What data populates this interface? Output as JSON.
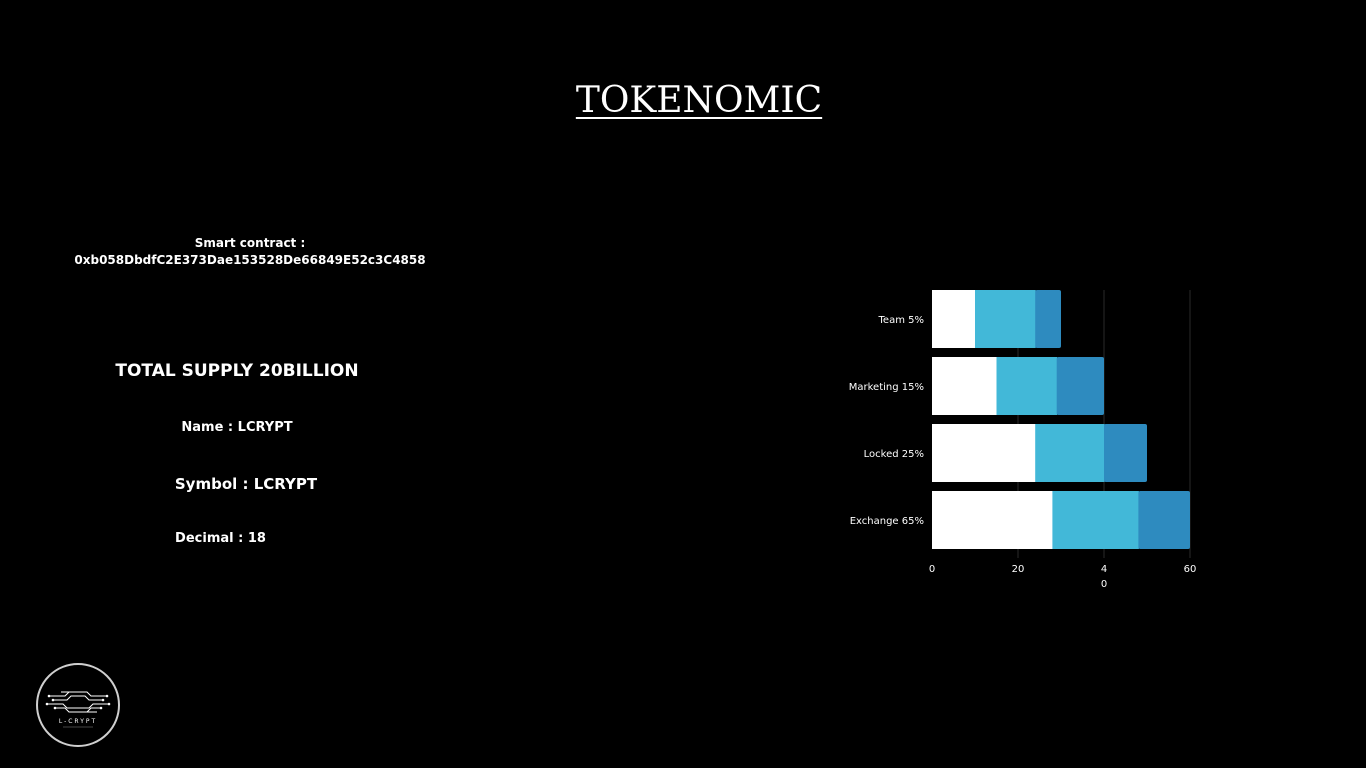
{
  "page": {
    "title": "TOKENOMIC",
    "contract_label": "Smart contract :",
    "contract_address": "0xb058DbdfC2E373Dae153528De66849E52c3C4858",
    "total_supply": "TOTAL SUPPLY 20BILLION",
    "name": "Name : LCRYPT",
    "symbol": "Symbol : LCRYPT",
    "decimal": "Decimal : 18",
    "logo_text": "L-CRYPT"
  },
  "colors": {
    "background": "#000000",
    "series_1": "#ffffff",
    "series_2": "#42b8d8",
    "series_3": "#2e8bbf",
    "gridline": "#2a2a2a"
  },
  "chart_data": {
    "type": "bar",
    "orientation": "horizontal",
    "stacked": true,
    "categories": [
      "Team 5%",
      "Marketing 15%",
      "Locked 25%",
      "Exchange 65%"
    ],
    "series": [
      {
        "values": [
          10,
          15,
          24,
          28
        ]
      },
      {
        "values": [
          14,
          14,
          16,
          20
        ]
      },
      {
        "values": [
          6,
          11,
          10,
          12
        ]
      }
    ],
    "x_ticks": [
      "0",
      "20",
      "4\n0",
      "60"
    ],
    "x_tick_values": [
      0,
      20,
      40,
      60
    ],
    "xlim": [
      0,
      60
    ],
    "grid": true,
    "title": "",
    "xlabel": "",
    "ylabel": ""
  }
}
